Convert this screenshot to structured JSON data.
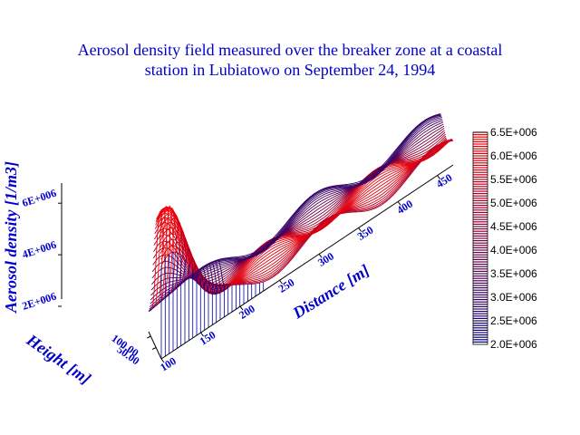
{
  "chart_data": {
    "type": "3d-surface-contour",
    "title_line1": "Aerosol density field measured over the breaker zone at a coastal",
    "title_line2": "station in Lubiatowo on September 24, 1994",
    "xlabel": "Distance [m]",
    "ylabel": "Height [m]",
    "zlabel": "Aerosol density [1/m3]",
    "x_ticks": [
      "100",
      "150",
      "200",
      "250",
      "300",
      "350",
      "400",
      "450"
    ],
    "y_ticks": [
      "50.00",
      "100.00"
    ],
    "z_ticks": [
      "2E+006",
      "4E+006",
      "6E+006"
    ],
    "xlim": [
      100,
      470
    ],
    "ylim": [
      0,
      120
    ],
    "zlim": [
      2000000,
      6500000
    ],
    "colorbar": {
      "min": 2000000,
      "max": 6500000,
      "ticks": [
        "6.5E+006",
        "6.0E+006",
        "5.5E+006",
        "5.0E+006",
        "4.5E+006",
        "4.0E+006",
        "3.5E+006",
        "3.0E+006",
        "2.5E+006",
        "2.0E+006"
      ],
      "color_low": "#000080",
      "color_high": "#ff0000"
    },
    "peak": {
      "distance": 110,
      "height": 30,
      "density": 6500000
    },
    "grid": false
  },
  "colors": {
    "text": "#0000cc",
    "contour_low": "#000080",
    "contour_high": "#ff0000"
  }
}
